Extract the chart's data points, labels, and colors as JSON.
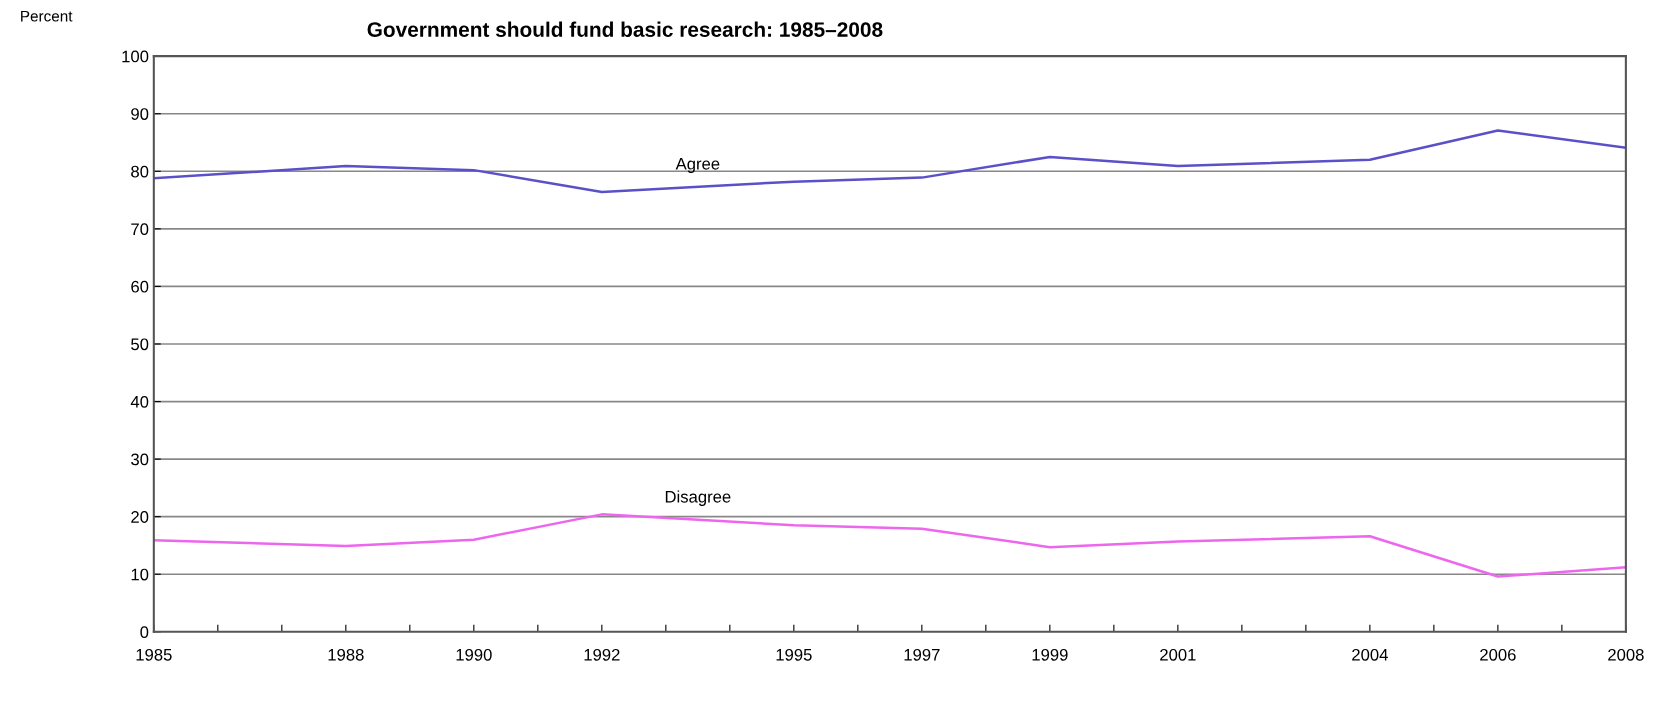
{
  "chart_data": {
    "type": "line",
    "title": "Government should fund basic research: 1985–2008",
    "ylabel": "Percent",
    "x": [
      1985,
      1988,
      1990,
      1992,
      1995,
      1997,
      1999,
      2001,
      2004,
      2006,
      2008
    ],
    "series": [
      {
        "name": "Agree",
        "color": "#5a50c8",
        "values": [
          78.8,
          80.9,
          80.2,
          76.4,
          78.2,
          78.9,
          82.5,
          80.9,
          82.0,
          87.1,
          84.1
        ]
      },
      {
        "name": "Disagree",
        "color": "#ee66ee",
        "values": [
          15.9,
          14.9,
          16.0,
          20.4,
          18.5,
          17.9,
          14.7,
          15.7,
          16.6,
          9.6,
          11.2
        ]
      }
    ],
    "xlim": [
      1985,
      2008
    ],
    "xticks": [
      1985,
      {
        "value": 1986,
        "label": null
      },
      {
        "value": 1987,
        "label": null
      },
      1988,
      {
        "value": 1989,
        "label": null
      },
      1990,
      {
        "value": 1991,
        "label": null
      },
      1992,
      {
        "value": 1993,
        "label": null
      },
      {
        "value": 1994,
        "label": null
      },
      1995,
      {
        "value": 1996,
        "label": null
      },
      1997,
      {
        "value": 1998,
        "label": null
      },
      1999,
      {
        "value": 2000,
        "label": null
      },
      2001,
      {
        "value": 2002,
        "label": null
      },
      {
        "value": 2003,
        "label": null
      },
      2004,
      {
        "value": 2005,
        "label": null
      },
      2006,
      {
        "value": 2007,
        "label": null
      },
      2008
    ],
    "ylim": [
      0,
      100
    ],
    "yticks": [
      0,
      10,
      20,
      30,
      40,
      50,
      60,
      70,
      80,
      90,
      100
    ],
    "grid": "y",
    "legend": false,
    "marker": "none",
    "line_style": "solid"
  }
}
